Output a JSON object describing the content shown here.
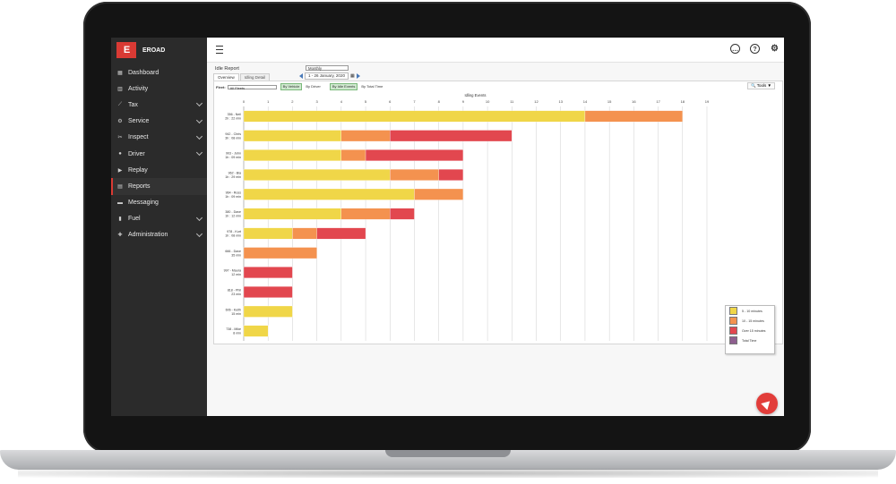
{
  "brand": {
    "logo": "E",
    "name": "EROAD"
  },
  "sidebar": {
    "items": [
      {
        "label": "Dashboard",
        "icon": "dashboard-icon",
        "glyph": "▦",
        "expandable": false
      },
      {
        "label": "Activity",
        "icon": "activity-icon",
        "glyph": "▥",
        "expandable": false
      },
      {
        "label": "Tax",
        "icon": "tax-icon",
        "glyph": "⟋",
        "expandable": true
      },
      {
        "label": "Service",
        "icon": "service-icon",
        "glyph": "⚙",
        "expandable": true
      },
      {
        "label": "Inspect",
        "icon": "inspect-icon",
        "glyph": "✂",
        "expandable": true
      },
      {
        "label": "Driver",
        "icon": "driver-icon",
        "glyph": "●",
        "expandable": true
      },
      {
        "label": "Replay",
        "icon": "replay-icon",
        "glyph": "▶",
        "expandable": false
      },
      {
        "label": "Reports",
        "icon": "reports-icon",
        "glyph": "▤",
        "expandable": false,
        "active": true
      },
      {
        "label": "Messaging",
        "icon": "messaging-icon",
        "glyph": "▬",
        "expandable": false
      },
      {
        "label": "Fuel",
        "icon": "fuel-icon",
        "glyph": "▮",
        "expandable": true
      },
      {
        "label": "Administration",
        "icon": "administration-icon",
        "glyph": "✚",
        "expandable": true
      }
    ]
  },
  "topbar": {
    "icons": [
      {
        "name": "chat-icon",
        "glyph": "…"
      },
      {
        "name": "help-icon",
        "glyph": "?"
      },
      {
        "name": "settings-icon",
        "glyph": "⚙"
      }
    ]
  },
  "report": {
    "title": "Idle Report",
    "tabs": [
      "Overview",
      "Idling Detail"
    ],
    "period": "Monthly",
    "date_range": "1 - 26 January, 2020",
    "fleet_label": "Fleet:",
    "fleet_value": "All Fleets",
    "group_options": [
      "By Vehicle",
      "By Driver",
      "By Idle Events",
      "By Total Time"
    ],
    "tools_label": "Tools ▼"
  },
  "chart_data": {
    "type": "bar",
    "orientation": "horizontal",
    "stacked": true,
    "title": "Idling Events",
    "xlim": [
      0,
      19
    ],
    "xticks": [
      0,
      1,
      2,
      3,
      4,
      5,
      6,
      7,
      8,
      9,
      10,
      11,
      12,
      13,
      14,
      15,
      16,
      17,
      18,
      19
    ],
    "categories": [
      "356 - Neil|2h : 22 min",
      "942 - Chris|3h : 08 min",
      "903 - John|1h : 09 min",
      "962 - Bia|1h : 29 min",
      "964 - Ross|1h : 09 min",
      "380 - Dave|1h : 12 min",
      "978 - Kurt|1h : 08 min",
      "666 - Dave|35 min",
      "997 - Maura|12 min",
      "818 - Phil|23 min",
      "606 - Keith|15 min",
      "738 - Mike|8 min"
    ],
    "series": [
      {
        "name": "5 - 10 minutes",
        "color": "#f0d648",
        "values": [
          14,
          4,
          4,
          6,
          7,
          4,
          2,
          0,
          0,
          0,
          2,
          1
        ]
      },
      {
        "name": "10 - 15 minutes",
        "color": "#f4924f",
        "values": [
          4,
          2,
          1,
          2,
          2,
          2,
          1,
          3,
          0,
          0,
          0,
          0
        ]
      },
      {
        "name": "Over 15 minutes",
        "color": "#e2474f",
        "values": [
          0,
          5,
          4,
          1,
          0,
          1,
          2,
          0,
          2,
          2,
          0,
          0
        ]
      },
      {
        "name": "Total Time",
        "color": "#8e5f8f",
        "values": [
          0,
          0,
          0,
          0,
          0,
          0,
          0,
          0,
          0,
          0,
          0,
          0
        ]
      }
    ],
    "grid": true,
    "legend_position": "bottom-right"
  }
}
